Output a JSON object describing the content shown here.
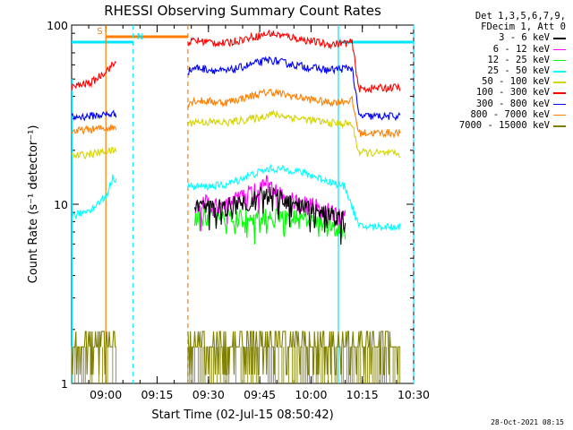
{
  "chart_data": {
    "type": "line",
    "title": "RHESSI Observing Summary Count Rates",
    "xlabel": "Start Time (02-Jul-15 08:50:42)",
    "ylabel": "Count Rate (s⁻¹ detector⁻¹)",
    "y_scale": "log",
    "ylim": [
      1,
      100
    ],
    "xlim": [
      "08:50",
      "10:30"
    ],
    "x_ticks": [
      "09:00",
      "09:15",
      "09:30",
      "09:45",
      "10:00",
      "10:15",
      "10:30"
    ],
    "y_ticks": [
      "1",
      "10",
      "100"
    ],
    "legend_header": [
      "Det 1,3,5,6,7,9,",
      "FDecim 1, Att 0"
    ],
    "legend_position": "right, outside plot",
    "flags": [
      {
        "label": "S",
        "start": "09:00",
        "end": "09:24",
        "color": "#ff7f00"
      },
      {
        "label": "N",
        "start": "08:50",
        "end": "09:08",
        "color": "#00e5ff"
      },
      {
        "label": "",
        "start": "10:08",
        "end": "10:30",
        "color": "#00e5ff"
      }
    ],
    "segments": [
      [
        "08:50",
        "09:03"
      ],
      [
        "09:24",
        "10:12"
      ],
      [
        "10:12",
        "10:26"
      ]
    ],
    "series": [
      {
        "name": "3 - 6 keV",
        "color": "#000000",
        "points": [
          [
            "09:26",
            9.5
          ],
          [
            "09:35",
            9.7
          ],
          [
            "09:42",
            10.5
          ],
          [
            "09:47",
            11.5
          ],
          [
            "09:52",
            10.5
          ],
          [
            "09:58",
            9.5
          ],
          [
            "10:02",
            9.0
          ],
          [
            "10:10",
            8.2
          ]
        ]
      },
      {
        "name": "6 - 12 keV",
        "color": "#ff00ff",
        "points": [
          [
            "09:26",
            10.0
          ],
          [
            "09:35",
            10.1
          ],
          [
            "09:42",
            11.5
          ],
          [
            "09:47",
            13.0
          ],
          [
            "09:52",
            11.0
          ],
          [
            "09:58",
            10.0
          ],
          [
            "10:02",
            9.5
          ],
          [
            "10:10",
            8.3
          ]
        ]
      },
      {
        "name": "12 - 25 keV",
        "color": "#00ff00",
        "points": [
          [
            "09:26",
            8.5
          ],
          [
            "09:35",
            8.4
          ],
          [
            "09:45",
            8.5
          ],
          [
            "09:55",
            8.4
          ],
          [
            "10:05",
            7.8
          ],
          [
            "10:10",
            7.0
          ]
        ]
      },
      {
        "name": "25 - 50 keV",
        "color": "#00ffff",
        "points": [
          [
            "08:50",
            8.5
          ],
          [
            "08:56",
            9.5
          ],
          [
            "09:00",
            11.0
          ],
          [
            "09:02",
            14.0
          ],
          [
            "09:26",
            12.5
          ],
          [
            "09:35",
            12.8
          ],
          [
            "09:42",
            14.5
          ],
          [
            "09:48",
            15.8
          ],
          [
            "09:55",
            15.5
          ],
          [
            "10:00",
            14.5
          ],
          [
            "10:05",
            13.5
          ],
          [
            "10:10",
            12.5
          ],
          [
            "10:14",
            7.5
          ],
          [
            "10:26",
            7.5
          ]
        ]
      },
      {
        "name": "50 - 100 keV",
        "color": "#d4d400",
        "points": [
          [
            "08:50",
            18.5
          ],
          [
            "09:03",
            20.0
          ],
          [
            "09:26",
            29.0
          ],
          [
            "09:35",
            28.5
          ],
          [
            "09:45",
            30.5
          ],
          [
            "09:48",
            32.0
          ],
          [
            "09:55",
            30.5
          ],
          [
            "10:05",
            28.5
          ],
          [
            "10:12",
            28.0
          ],
          [
            "10:14",
            19.5
          ],
          [
            "10:26",
            19.0
          ]
        ]
      },
      {
        "name": "100 - 300 keV",
        "color": "#ff0000",
        "points": [
          [
            "08:50",
            45.0
          ],
          [
            "08:56",
            48.0
          ],
          [
            "09:03",
            62.0
          ],
          [
            "09:26",
            82.0
          ],
          [
            "09:35",
            79.0
          ],
          [
            "09:42",
            85.0
          ],
          [
            "09:48",
            90.0
          ],
          [
            "09:55",
            85.0
          ],
          [
            "10:05",
            78.0
          ],
          [
            "10:12",
            80.0
          ],
          [
            "10:14",
            44.0
          ],
          [
            "10:26",
            45.0
          ]
        ]
      },
      {
        "name": "300 - 800 keV",
        "color": "#0000ff",
        "points": [
          [
            "08:50",
            30.5
          ],
          [
            "09:03",
            32.0
          ],
          [
            "09:26",
            58.0
          ],
          [
            "09:35",
            55.0
          ],
          [
            "09:42",
            60.0
          ],
          [
            "09:48",
            64.0
          ],
          [
            "09:55",
            60.0
          ],
          [
            "10:05",
            56.0
          ],
          [
            "10:12",
            58.0
          ],
          [
            "10:14",
            31.0
          ],
          [
            "10:26",
            31.0
          ]
        ]
      },
      {
        "name": "800 - 7000 keV",
        "color": "#ff8000",
        "points": [
          [
            "08:50",
            25.5
          ],
          [
            "09:03",
            27.0
          ],
          [
            "09:26",
            38.0
          ],
          [
            "09:35",
            37.0
          ],
          [
            "09:42",
            40.0
          ],
          [
            "09:48",
            42.5
          ],
          [
            "09:55",
            40.0
          ],
          [
            "10:05",
            37.0
          ],
          [
            "10:12",
            38.0
          ],
          [
            "10:14",
            25.0
          ],
          [
            "10:26",
            25.0
          ]
        ]
      },
      {
        "name": "7000 - 15000 keV",
        "color": "#808000",
        "points": [
          [
            "08:50",
            1.6
          ],
          [
            "09:03",
            1.6
          ],
          [
            "09:26",
            1.6
          ],
          [
            "09:45",
            1.6
          ],
          [
            "10:05",
            1.6
          ],
          [
            "10:12",
            1.6
          ],
          [
            "10:26",
            1.6
          ]
        ]
      }
    ]
  },
  "timestamp": "28-Oct-2021 08:15"
}
